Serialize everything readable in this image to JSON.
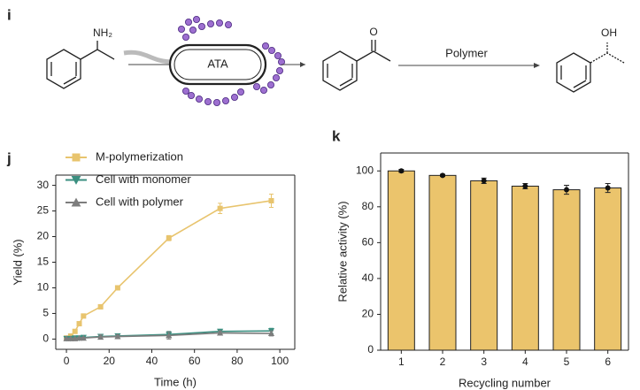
{
  "scheme": {
    "panel": "i",
    "amine_group": "NH₂",
    "enzyme": "ATA",
    "ketone_group": "O",
    "arrow_label": "Polymer",
    "alcohol_group": "OH"
  },
  "chart_data": [
    {
      "type": "line",
      "panel": "j",
      "xlabel": "Time (h)",
      "ylabel": "Yield (%)",
      "xlim": [
        -5,
        107
      ],
      "xticks": [
        0,
        20,
        40,
        60,
        80,
        100
      ],
      "ylim": [
        -2,
        32
      ],
      "yticks": [
        0,
        5,
        10,
        15,
        20,
        25,
        30
      ],
      "legend": "upper left",
      "x": [
        0,
        2,
        4,
        6,
        8,
        16,
        24,
        48,
        72,
        96
      ],
      "series": [
        {
          "name": "M-polymerization",
          "color": "#e8c46e",
          "marker": "square",
          "values": [
            0.2,
            0.6,
            1.5,
            3,
            4.5,
            6.3,
            10,
            19.7,
            25.5,
            27
          ],
          "errors": [
            0.1,
            0.2,
            0.2,
            0.3,
            0.3,
            0.4,
            0.4,
            0.5,
            1,
            1.3
          ]
        },
        {
          "name": "Cell with monomer",
          "color": "#3b8f80",
          "marker": "triangle-down",
          "values": [
            0.1,
            0.1,
            0.2,
            0.2,
            0.3,
            0.5,
            0.6,
            0.9,
            1.5,
            1.6
          ],
          "errors": [
            0.1,
            0.1,
            0.1,
            0.1,
            0.1,
            0.4,
            0.3,
            0.6,
            0.4,
            0.5
          ]
        },
        {
          "name": "Cell with polymer",
          "color": "#7d7d7d",
          "marker": "triangle-up",
          "values": [
            0.1,
            0.1,
            0.1,
            0.2,
            0.2,
            0.4,
            0.5,
            0.7,
            1.2,
            1.1
          ],
          "errors": [
            0.1,
            0.1,
            0.1,
            0.1,
            0.1,
            0.4,
            0.3,
            0.7,
            0.4,
            0.5
          ]
        }
      ]
    },
    {
      "type": "bar",
      "panel": "k",
      "xlabel": "Recycling number",
      "ylabel": "Relative activity (%)",
      "categories": [
        "1",
        "2",
        "3",
        "4",
        "5",
        "6"
      ],
      "values": [
        100,
        97.5,
        94.5,
        91.5,
        89.5,
        90.5
      ],
      "errors": [
        0.8,
        0.6,
        1.5,
        1.5,
        2.5,
        2.5
      ],
      "color": "#ebc46c",
      "ylim": [
        0,
        110
      ],
      "yticks": [
        0,
        20,
        40,
        60,
        80,
        100
      ]
    }
  ]
}
